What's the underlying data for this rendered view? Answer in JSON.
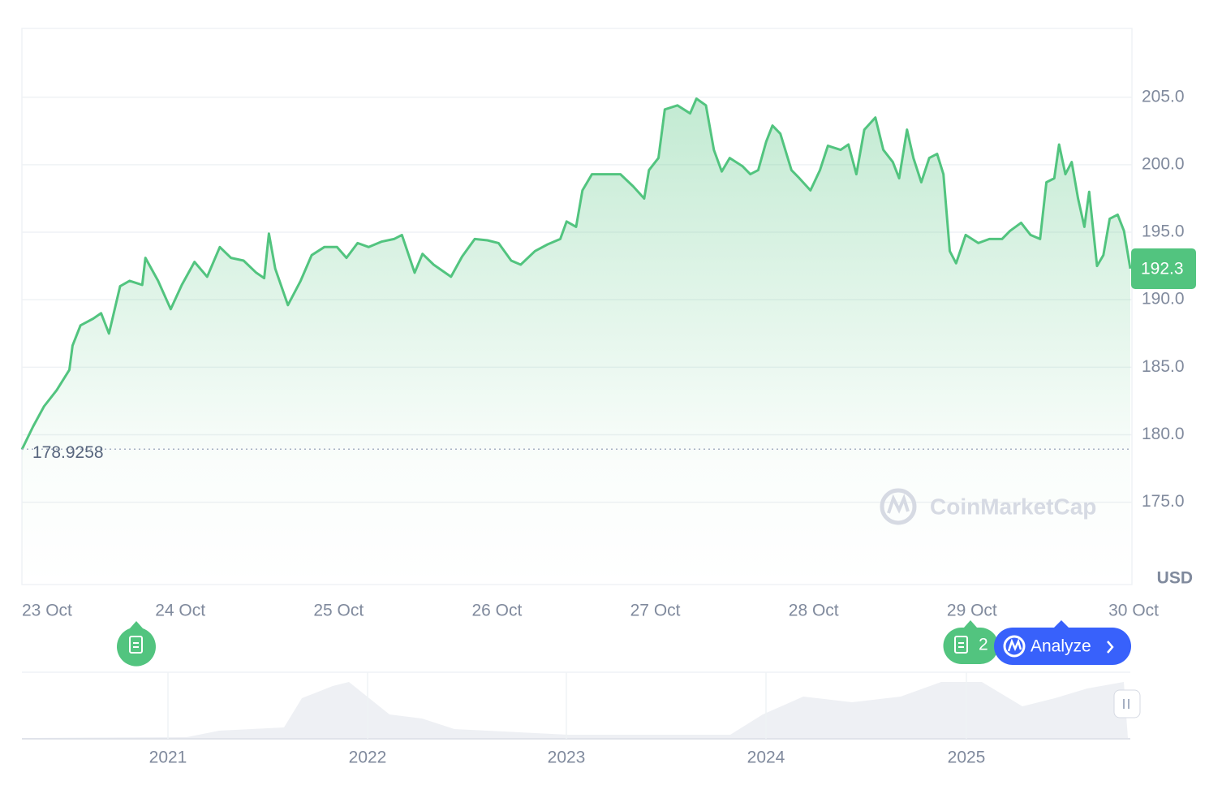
{
  "chart_data": {
    "type": "line",
    "color": "#52c47f",
    "x": [
      23.0,
      23.07,
      23.14,
      23.22,
      23.3,
      23.32,
      23.37,
      23.45,
      23.5,
      23.55,
      23.62,
      23.68,
      23.76,
      23.78,
      23.86,
      23.94,
      24.01,
      24.09,
      24.17,
      24.25,
      24.32,
      24.4,
      24.48,
      24.53,
      24.56,
      24.6,
      24.68,
      24.76,
      24.83,
      24.91,
      24.99,
      25.05,
      25.12,
      25.19,
      25.27,
      25.35,
      25.4,
      25.48,
      25.53,
      25.6,
      25.71,
      25.78,
      25.86,
      25.94,
      26.01,
      26.09,
      26.15,
      26.24,
      26.32,
      26.4,
      26.44,
      26.5,
      26.54,
      26.6,
      26.71,
      26.78,
      26.86,
      26.93,
      26.96,
      27.02,
      27.06,
      27.14,
      27.22,
      27.26,
      27.32,
      27.37,
      27.42,
      27.47,
      27.55,
      27.6,
      27.65,
      27.7,
      27.74,
      27.79,
      27.86,
      27.91,
      27.98,
      28.04,
      28.09,
      28.17,
      28.22,
      28.27,
      28.32,
      28.39,
      28.44,
      28.5,
      28.54,
      28.59,
      28.63,
      28.68,
      28.73,
      28.78,
      28.82,
      28.86,
      28.9,
      28.96,
      29.04,
      29.11,
      29.19,
      29.24,
      29.31,
      29.37,
      29.43,
      29.47,
      29.52,
      29.55,
      29.59,
      29.63,
      29.67,
      29.71,
      29.74,
      29.79,
      29.83,
      29.87,
      29.92,
      29.96,
      30.0
    ],
    "values": [
      178.9,
      180.6,
      182.1,
      183.3,
      184.8,
      186.6,
      188.1,
      188.6,
      189.0,
      187.5,
      191.0,
      191.4,
      191.1,
      193.1,
      191.4,
      189.3,
      191.1,
      192.8,
      191.7,
      193.9,
      193.1,
      192.9,
      192.0,
      191.6,
      194.9,
      192.3,
      189.6,
      191.4,
      193.3,
      193.9,
      193.9,
      193.1,
      194.2,
      193.9,
      194.3,
      194.5,
      194.8,
      192.0,
      193.4,
      192.6,
      191.7,
      193.2,
      194.5,
      194.4,
      194.2,
      192.9,
      192.6,
      193.6,
      194.1,
      194.5,
      195.8,
      195.4,
      198.1,
      199.3,
      199.3,
      199.3,
      198.4,
      197.5,
      199.6,
      200.5,
      204.1,
      204.4,
      203.8,
      204.9,
      204.4,
      201.1,
      199.5,
      200.5,
      199.9,
      199.3,
      199.6,
      201.7,
      202.9,
      202.3,
      199.6,
      199.0,
      198.1,
      199.6,
      201.4,
      201.1,
      201.5,
      199.3,
      202.6,
      203.5,
      201.1,
      200.2,
      199.0,
      202.6,
      200.5,
      198.7,
      200.5,
      200.8,
      199.3,
      193.6,
      192.7,
      194.8,
      194.2,
      194.5,
      194.5,
      195.1,
      195.7,
      194.8,
      194.5,
      198.7,
      199.0,
      201.5,
      199.3,
      200.2,
      197.5,
      195.4,
      198.0,
      192.5,
      193.3,
      196.0,
      196.3,
      195.1,
      192.3
    ],
    "xlim": [
      23,
      30
    ],
    "xticks": [
      {
        "value": 23,
        "label": "23 Oct"
      },
      {
        "value": 24,
        "label": "24 Oct"
      },
      {
        "value": 25,
        "label": "25 Oct"
      },
      {
        "value": 26,
        "label": "26 Oct"
      },
      {
        "value": 27,
        "label": "27 Oct"
      },
      {
        "value": 28,
        "label": "28 Oct"
      },
      {
        "value": 29,
        "label": "29 Oct"
      },
      {
        "value": 30,
        "label": "30 Oct"
      }
    ],
    "ylim": [
      168.9,
      210.1
    ],
    "yticks": [
      {
        "value": 175,
        "label": "175.0"
      },
      {
        "value": 180,
        "label": "180.0"
      },
      {
        "value": 185,
        "label": "185.0"
      },
      {
        "value": 190,
        "label": "190.0"
      },
      {
        "value": 195,
        "label": "195.0"
      },
      {
        "value": 200,
        "label": "200.0"
      },
      {
        "value": 205,
        "label": "205.0"
      }
    ],
    "grid": true,
    "start_price": 178.9258,
    "current_price": 192.3,
    "unit": "USD",
    "watermark": "CoinMarketCap",
    "news_count": 2,
    "analyze": "Analyze",
    "navigator_labels": [
      "2021",
      "2022",
      "2023",
      "2024",
      "2025"
    ]
  }
}
